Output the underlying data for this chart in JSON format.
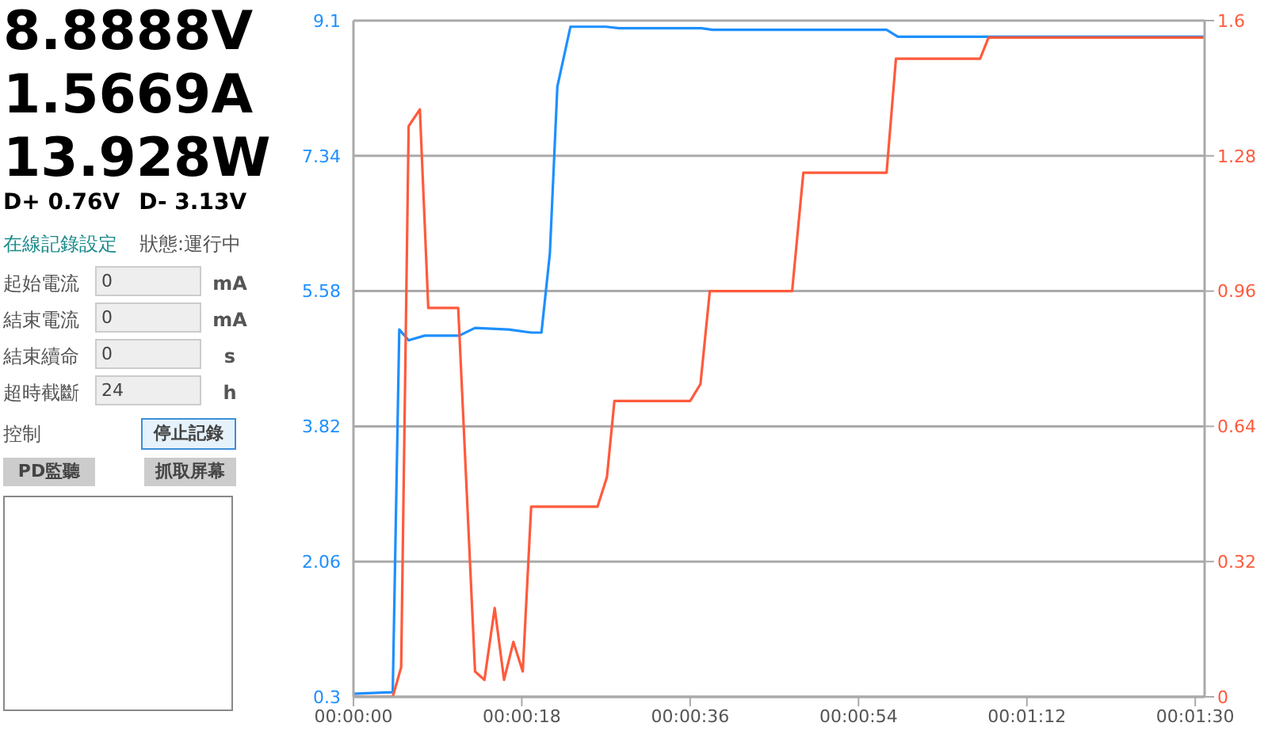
{
  "chart_data": {
    "type": "line",
    "annotations": [
      "8.8888V",
      "1.5669A",
      "13.928W",
      "D+ 0.76V",
      "D- 3.13V",
      "在線記錄設定",
      "狀態:運行中",
      "起始電流",
      "0",
      "mA",
      "結束電流",
      "0",
      "mA",
      "結束續命",
      "0",
      "s",
      "超時截斷",
      "24",
      "h",
      "控制",
      "停止記錄",
      "PD監聽",
      "抓取屏幕"
    ],
    "series": [
      {
        "color": "#1e8fff",
        "x": [
          0,
          4.2,
          4.9,
          5.9,
          7.6,
          11.3,
          13.0,
          16.6,
          19.0,
          20.1,
          21.0,
          21.8,
          23.2,
          27.0,
          28.4,
          37.2,
          38.4,
          57.0,
          58.2,
          90.9
        ],
        "values": [
          0.34,
          0.36,
          5.08,
          4.94,
          5.0,
          5.0,
          5.1,
          5.08,
          5.04,
          5.04,
          6.07,
          8.24,
          9.02,
          9.02,
          9.0,
          9.0,
          8.98,
          8.98,
          8.89,
          8.89
        ]
      },
      {
        "color": "#ff5a3c",
        "axis": "y2",
        "x": [
          0,
          4.2,
          5.1,
          5.9,
          7.1,
          8.0,
          11.2,
          13.0,
          14.0,
          15.1,
          16.1,
          17.1,
          18.1,
          19.0,
          26.1,
          27.1,
          27.9,
          36.0,
          37.1,
          38.1,
          46.9,
          48.1,
          57.0,
          58.0,
          67.0,
          67.9,
          90.9
        ],
        "values": [
          0,
          0,
          0.07,
          1.35,
          1.39,
          0.92,
          0.92,
          0.06,
          0.04,
          0.21,
          0.04,
          0.13,
          0.06,
          0.45,
          0.45,
          0.52,
          0.7,
          0.7,
          0.74,
          0.96,
          0.96,
          1.24,
          1.24,
          1.51,
          1.51,
          1.56,
          1.56
        ]
      }
    ],
    "xlim": [
      0,
      91
    ],
    "xticks": [
      {
        "value": 0,
        "label": "00:00:00"
      },
      {
        "value": 18,
        "label": "00:00:18"
      },
      {
        "value": 36,
        "label": "00:00:36"
      },
      {
        "value": 54,
        "label": "00:00:54"
      },
      {
        "value": 72,
        "label": "00:01:12"
      },
      {
        "value": 90,
        "label": "00:01:30"
      }
    ],
    "ylim": [
      0.3,
      9.1
    ],
    "yticks": [
      0.3,
      2.06,
      3.82,
      5.58,
      7.34,
      9.1
    ],
    "y2lim": [
      0,
      1.6
    ],
    "y2ticks": [
      0,
      0.32,
      0.64,
      0.96,
      1.28,
      1.6
    ],
    "grid": "y"
  }
}
